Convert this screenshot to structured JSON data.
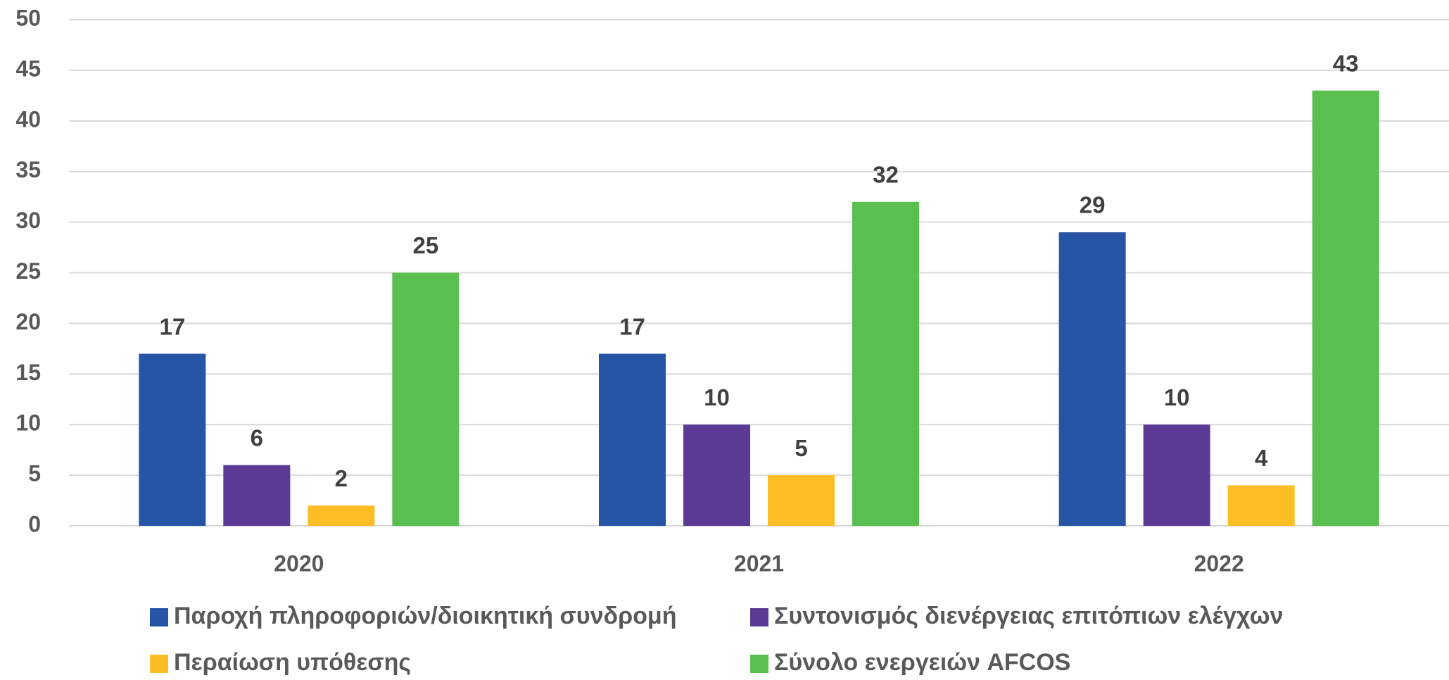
{
  "chart_data": {
    "type": "bar",
    "categories": [
      "2020",
      "2021",
      "2022"
    ],
    "series": [
      {
        "name": "Παροχή πληροφοριών/διοικητική συνδρομή",
        "color": "#2755a5",
        "values": [
          17,
          17,
          29
        ]
      },
      {
        "name": "Συντονισμός διενέργειας επιτόπιων ελέγχων",
        "color": "#5b3a96",
        "values": [
          6,
          10,
          10
        ]
      },
      {
        "name": "Περαίωση υπόθεσης",
        "color": "#fdbd24",
        "values": [
          2,
          5,
          4
        ]
      },
      {
        "name": "Σύνολο ενεργειών AFCOS",
        "color": "#59bf4f",
        "values": [
          25,
          32,
          43
        ]
      }
    ],
    "ylim": [
      0,
      50
    ],
    "yticks": [
      0,
      5,
      10,
      15,
      20,
      25,
      30,
      35,
      40,
      45,
      50
    ],
    "grid": true,
    "legend": "bottom"
  }
}
